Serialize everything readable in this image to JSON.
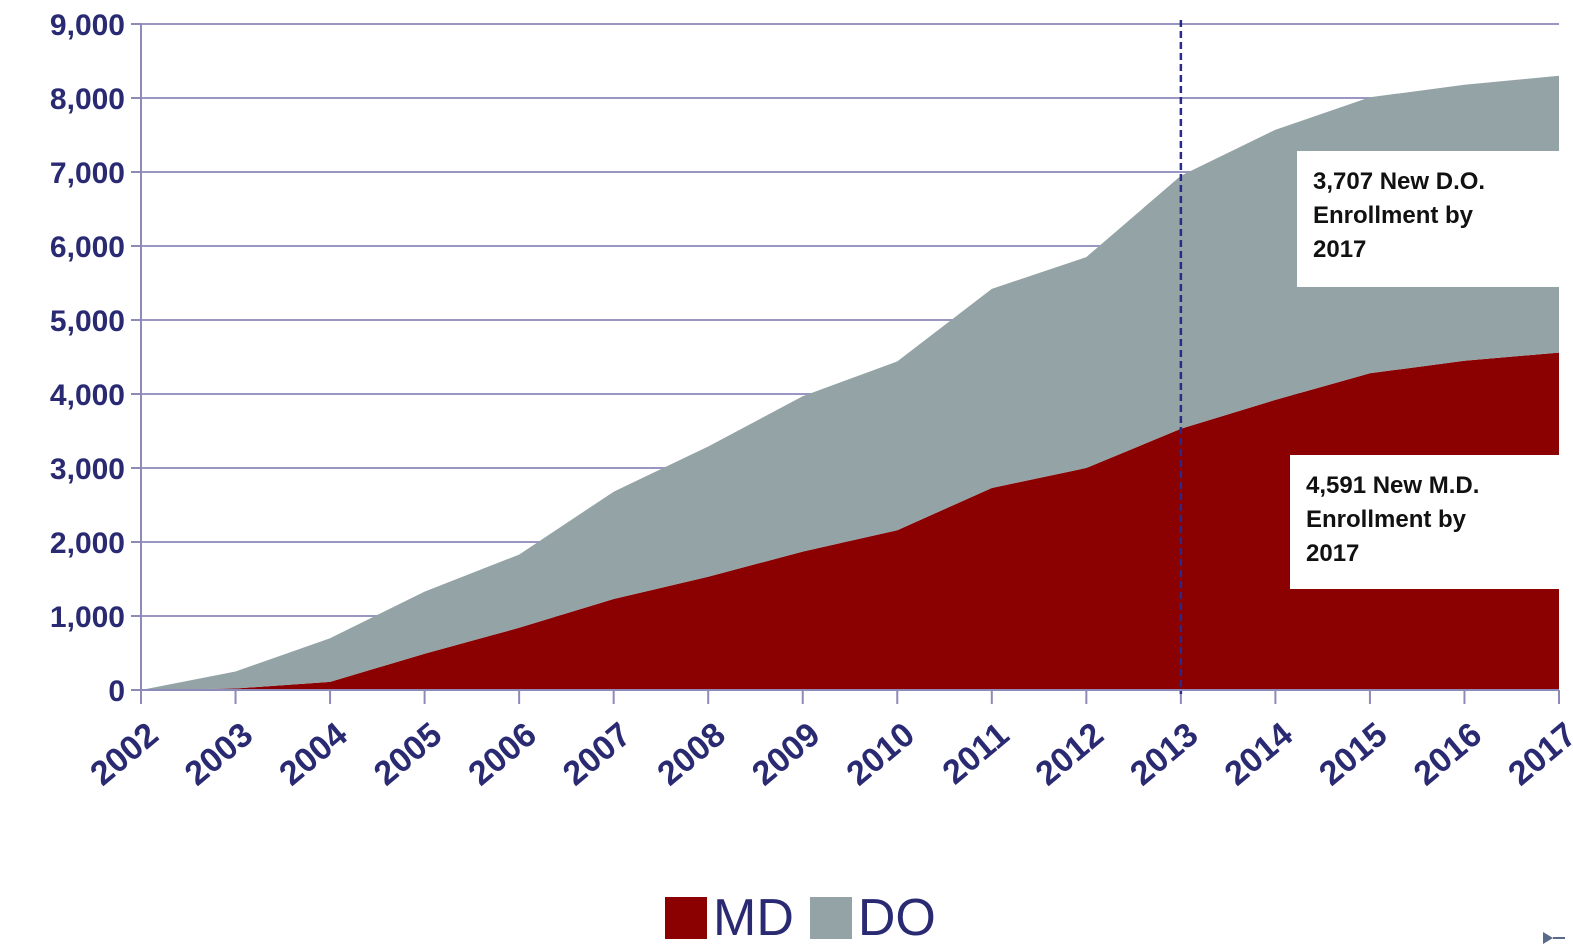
{
  "chart_data": {
    "type": "area",
    "stacked": true,
    "categories": [
      "2002",
      "2003",
      "2004",
      "2005",
      "2006",
      "2007",
      "2008",
      "2009",
      "2010",
      "2011",
      "2012",
      "2013",
      "2014",
      "2015",
      "2016",
      "2017"
    ],
    "series": [
      {
        "name": "MD",
        "color": "#8b0000",
        "values": [
          0,
          20,
          110,
          490,
          840,
          1230,
          1530,
          1870,
          2160,
          2730,
          3000,
          3530,
          3920,
          4280,
          4450,
          4560
        ]
      },
      {
        "name": "DO",
        "color": "#94a3a6",
        "values": [
          0,
          230,
          590,
          840,
          990,
          1450,
          1760,
          2100,
          2280,
          2690,
          2850,
          3420,
          3650,
          3730,
          3730,
          3740
        ]
      }
    ],
    "yticks": [
      "0",
      "1,000",
      "2,000",
      "3,000",
      "4,000",
      "5,000",
      "6,000",
      "7,000",
      "8,000",
      "9,000"
    ],
    "ylim": [
      0,
      9000
    ],
    "grid": true,
    "reference_line": {
      "x": "2013",
      "style": "dashed",
      "color": "#2a2a8a"
    },
    "annotations": [
      {
        "id": "do",
        "text_lines": [
          "3,707 New D.O.",
          "Enrollment by",
          "2017"
        ]
      },
      {
        "id": "md",
        "text_lines": [
          "4,591 New M.D.",
          "Enrollment by",
          "2017"
        ]
      }
    ],
    "legend": {
      "position": "bottom-center",
      "items": [
        "MD",
        "DO"
      ]
    },
    "title": "",
    "xlabel": "",
    "ylabel": ""
  }
}
